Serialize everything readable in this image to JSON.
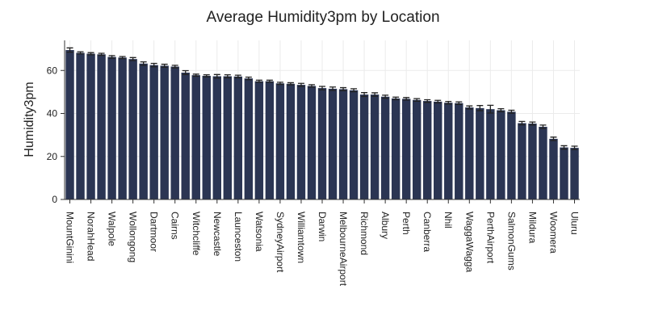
{
  "chart_data": {
    "type": "bar",
    "title": "Average Humidity3pm by Location",
    "y_label": "Humidity3pm",
    "categories": [
      "MountGinini",
      null,
      "NorahHead",
      null,
      "Walpole",
      null,
      "Wollongong",
      null,
      "Dartmoor",
      null,
      "Cairns",
      null,
      "Witchcliffe",
      null,
      "Newcastle",
      null,
      "Launceston",
      null,
      "Watsonia",
      null,
      "SydneyAirport",
      null,
      "Williamtown",
      null,
      "Darwin",
      null,
      "MelbourneAirport",
      null,
      "Richmond",
      null,
      "Albury",
      null,
      "Perth",
      null,
      "Canberra",
      null,
      "Nhil",
      null,
      "WaggaWagga",
      null,
      "PerthAirport",
      null,
      "SalmonGums",
      null,
      "Mildura",
      null,
      "Woomera",
      null,
      "Uluru"
    ],
    "values": [
      69.5,
      68.2,
      67.8,
      67.5,
      66.3,
      66.0,
      65.3,
      63.2,
      62.5,
      62.2,
      61.8,
      59.0,
      57.8,
      57.5,
      57.3,
      57.3,
      57.2,
      56.3,
      55.0,
      55.0,
      54.0,
      53.8,
      53.3,
      52.8,
      51.8,
      51.5,
      51.3,
      50.8,
      48.8,
      48.8,
      47.8,
      47.0,
      46.8,
      46.3,
      45.8,
      45.5,
      45.0,
      44.8,
      42.8,
      42.5,
      42.0,
      41.5,
      40.8,
      35.5,
      35.3,
      33.8,
      28.2,
      24.2,
      24.0
    ],
    "errors": [
      1.0,
      0.5,
      0.5,
      0.5,
      0.6,
      0.5,
      0.7,
      0.8,
      0.8,
      0.7,
      0.6,
      0.9,
      0.5,
      0.5,
      0.8,
      0.7,
      0.6,
      0.6,
      0.5,
      0.5,
      0.5,
      0.5,
      0.7,
      0.6,
      0.8,
      0.8,
      0.7,
      0.7,
      0.9,
      0.8,
      0.7,
      0.6,
      0.6,
      0.6,
      0.6,
      0.6,
      0.6,
      0.6,
      0.7,
      1.2,
      1.8,
      0.7,
      0.7,
      0.8,
      0.7,
      0.8,
      0.8,
      0.8,
      0.8
    ],
    "color": "#2b3553",
    "ylim": [
      0,
      74
    ],
    "yticks": [
      0,
      20,
      40,
      60
    ],
    "grid": true
  }
}
